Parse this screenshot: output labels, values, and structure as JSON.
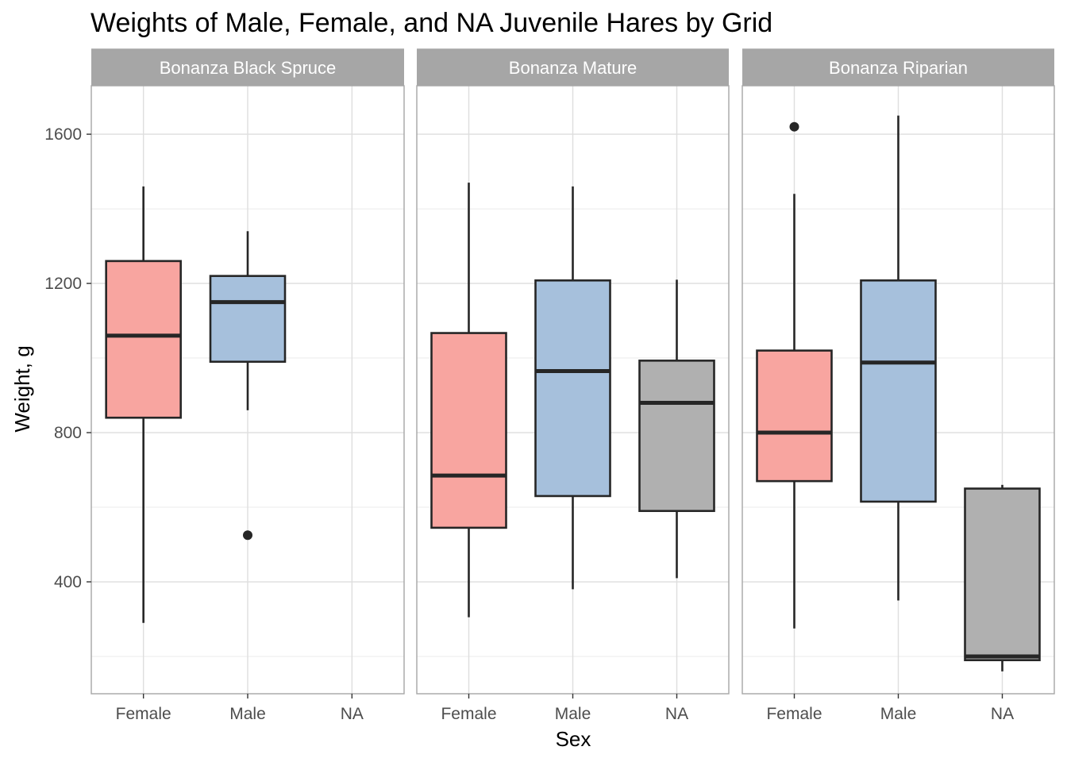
{
  "chart_data": {
    "type": "boxplot",
    "title": "Weights of Male, Female, and NA Juvenile Hares by Grid",
    "xlabel": "Sex",
    "ylabel": "Weight, g",
    "categories": [
      "Female",
      "Male",
      "NA"
    ],
    "ylim": [
      100,
      1730
    ],
    "yticks": [
      400,
      800,
      1200,
      1600
    ],
    "grid": true,
    "legend": "none",
    "colors": {
      "Female": "#f8a5a0",
      "Male": "#a6c0dc",
      "NA": "#b0b0b0"
    },
    "panels": [
      {
        "name": "Bonanza Black Spruce",
        "boxes": [
          {
            "category": "Female",
            "min": 290,
            "q1": 840,
            "median": 1060,
            "q3": 1260,
            "max": 1460,
            "outliers": []
          },
          {
            "category": "Male",
            "min": 860,
            "q1": 990,
            "median": 1150,
            "q3": 1220,
            "max": 1340,
            "outliers": [
              525
            ]
          }
        ]
      },
      {
        "name": "Bonanza Mature",
        "boxes": [
          {
            "category": "Female",
            "min": 305,
            "q1": 545,
            "median": 685,
            "q3": 1067,
            "max": 1470,
            "outliers": []
          },
          {
            "category": "Male",
            "min": 380,
            "q1": 630,
            "median": 965,
            "q3": 1208,
            "max": 1460,
            "outliers": []
          },
          {
            "category": "NA",
            "min": 410,
            "q1": 590,
            "median": 880,
            "q3": 993,
            "max": 1210,
            "outliers": []
          }
        ]
      },
      {
        "name": "Bonanza Riparian",
        "boxes": [
          {
            "category": "Female",
            "min": 275,
            "q1": 670,
            "median": 800,
            "q3": 1020,
            "max": 1440,
            "outliers": [
              1620
            ]
          },
          {
            "category": "Male",
            "min": 350,
            "q1": 615,
            "median": 988,
            "q3": 1208,
            "max": 1650,
            "outliers": []
          },
          {
            "category": "NA",
            "min": 160,
            "q1": 190,
            "median": 200,
            "q3": 650,
            "max": 660,
            "outliers": []
          }
        ]
      }
    ]
  }
}
